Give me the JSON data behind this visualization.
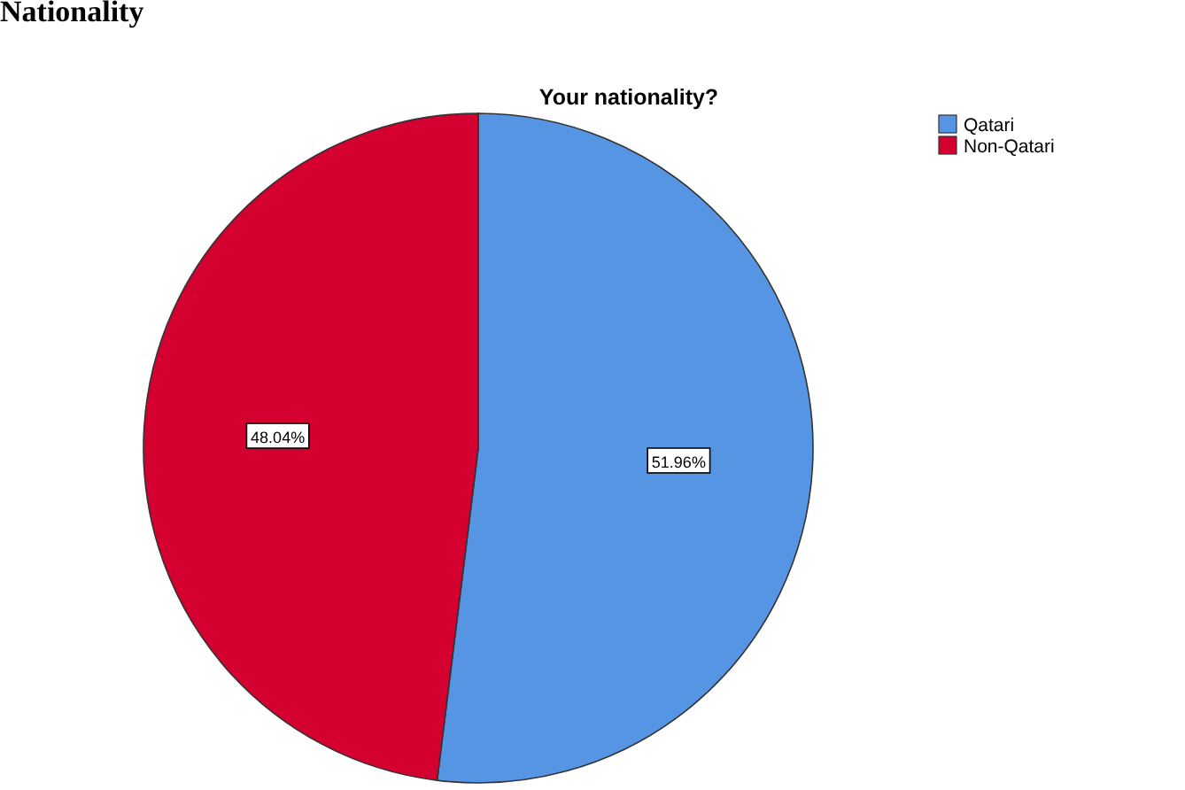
{
  "chart_data": {
    "type": "pie",
    "title": "Your nationality?",
    "annotations": [
      "Nationality"
    ],
    "categories": [
      "Qatari",
      "Non-Qatari"
    ],
    "values": [
      51.96,
      48.04
    ],
    "colors": [
      "#5595e3",
      "#d40030"
    ],
    "value_labels": [
      "51.96%",
      "48.04%"
    ],
    "legend": "top right"
  }
}
